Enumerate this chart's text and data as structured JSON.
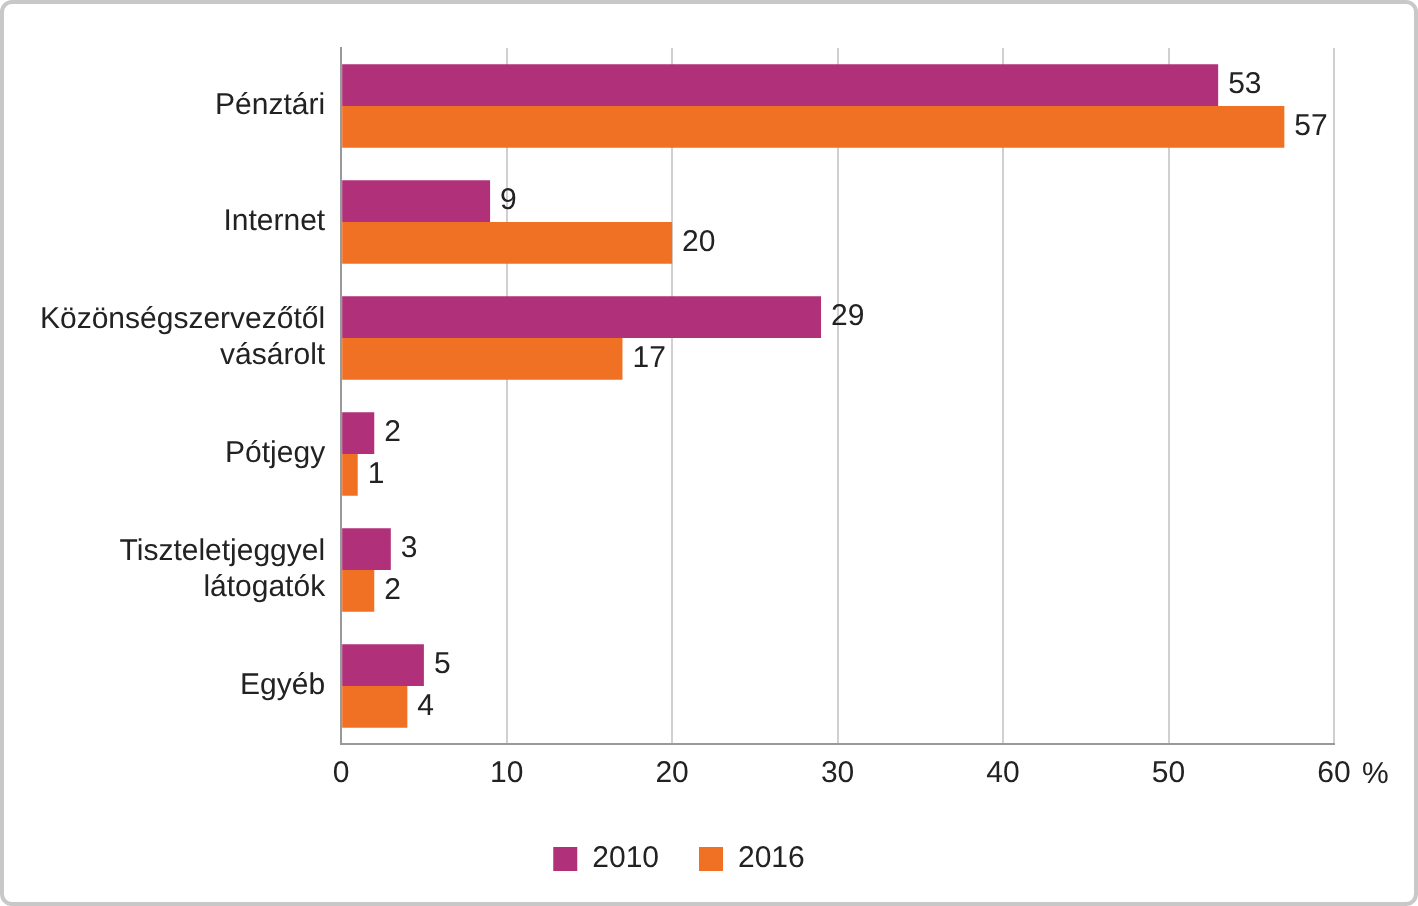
{
  "chart_data": {
    "type": "bar",
    "orientation": "horizontal",
    "categories": [
      "Pénztári",
      "Internet",
      "Közönségszervezőtől vásárolt",
      "Pótjegy",
      "Tiszteletjeggyel látogatók",
      "Egyéb"
    ],
    "series": [
      {
        "name": "2010",
        "color": "#b0307a",
        "values": [
          53,
          9,
          29,
          2,
          3,
          5
        ]
      },
      {
        "name": "2016",
        "color": "#f07024",
        "values": [
          57,
          20,
          17,
          1,
          2,
          4
        ]
      }
    ],
    "xlim": [
      0,
      60
    ],
    "xticks": [
      0,
      10,
      20,
      30,
      40,
      50,
      60
    ],
    "xlabel": "%",
    "grid": "x",
    "legend": "bottom",
    "data_labels": true
  }
}
